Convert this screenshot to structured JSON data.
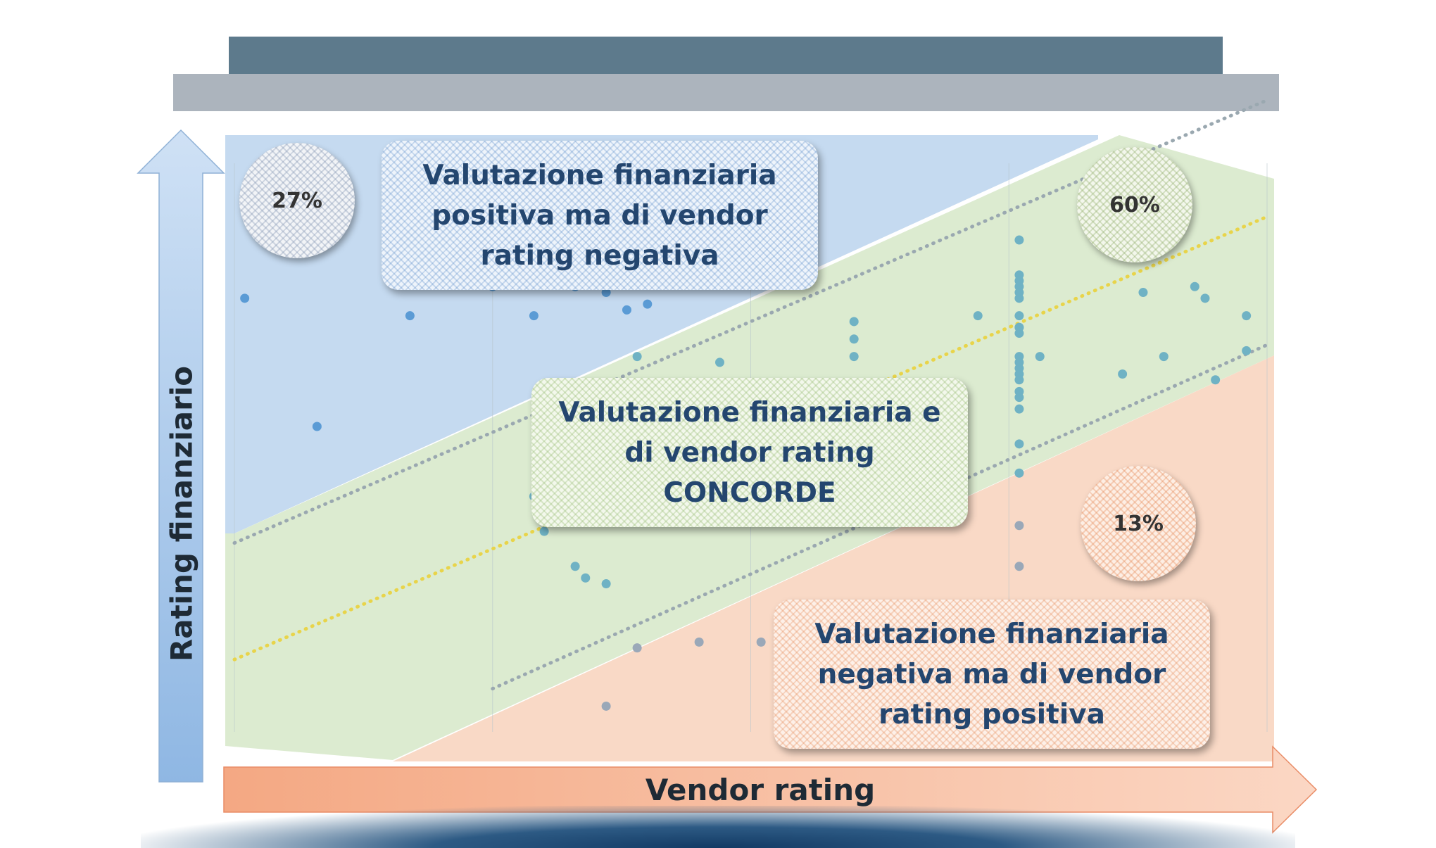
{
  "chart_data": {
    "type": "scatter",
    "title": "",
    "xlabel": "Vendor rating",
    "ylabel": "Rating finanziario",
    "xlim": [
      0,
      10
    ],
    "ylim": [
      0,
      10
    ],
    "grid": true,
    "regions": [
      {
        "id": "blue",
        "color": "#c5daf0",
        "label": "Valutazione finanziaria positiva ma di vendor rating negativa",
        "share": "27%"
      },
      {
        "id": "green",
        "color": "#dcebd0",
        "label": "Valutazione finanziaria e di vendor rating CONCORDE",
        "share": "60%"
      },
      {
        "id": "orange",
        "color": "#f9d9c6",
        "label": "Valutazione finanziaria negativa ma di vendor rating positiva",
        "share": "13%"
      }
    ],
    "series": [
      {
        "color": "#5b9bd5",
        "x": [
          0.1,
          0.8,
          1.7,
          2.5,
          2.9,
          3.3,
          3.6,
          3.8,
          4.0
        ],
        "y": [
          7.2,
          5.0,
          6.9,
          7.4,
          6.9,
          7.4,
          7.3,
          7.0,
          7.1
        ]
      },
      {
        "color": "#6fb2c4",
        "x": [
          2.9,
          3.0,
          3.0,
          3.3,
          3.4,
          3.6,
          3.9,
          4.7,
          4.8,
          6.0,
          6.0,
          6.0,
          6.0,
          6.1,
          7.2,
          7.6,
          7.8,
          8.6,
          8.8,
          9.0,
          9.3,
          9.4,
          9.5,
          9.8,
          9.8
        ],
        "y": [
          3.8,
          3.4,
          3.2,
          2.6,
          2.4,
          2.3,
          6.2,
          6.1,
          3.7,
          6.8,
          6.5,
          6.2,
          5.7,
          4.6,
          6.9,
          6.7,
          6.2,
          5.9,
          7.3,
          6.2,
          7.4,
          7.2,
          5.8,
          6.3,
          6.9
        ]
      },
      {
        "color": "#6fb2c4",
        "x": [
          7.6,
          7.6,
          7.6,
          7.6,
          7.6,
          7.6,
          7.6,
          7.6,
          7.6,
          7.6,
          7.6,
          7.6,
          7.6,
          7.6,
          7.6,
          7.6,
          7.6,
          7.6,
          7.6
        ],
        "y": [
          8.2,
          7.6,
          7.5,
          7.4,
          7.3,
          7.2,
          6.9,
          6.7,
          6.6,
          6.2,
          6.1,
          6.0,
          5.9,
          5.8,
          5.6,
          5.5,
          5.3,
          4.7,
          4.2
        ]
      },
      {
        "color": "#9aa8b8",
        "x": [
          3.9,
          4.5,
          5.1,
          7.6,
          7.6
        ],
        "y": [
          1.2,
          1.3,
          1.3,
          3.3,
          2.6
        ]
      },
      {
        "color": "#9aa8b8",
        "x": [
          3.6
        ],
        "y": [
          0.2
        ]
      }
    ],
    "trend_lines": [
      {
        "name": "upper",
        "color": "#9aa8b0",
        "x": [
          0,
          10
        ],
        "y": [
          3.0,
          10.6
        ]
      },
      {
        "name": "middle",
        "color": "#e8d44a",
        "x": [
          0,
          10
        ],
        "y": [
          1.0,
          8.6
        ]
      },
      {
        "name": "lower",
        "color": "#9aa8b0",
        "x": [
          2.5,
          10
        ],
        "y": [
          0.5,
          6.4
        ]
      }
    ]
  },
  "labels": {
    "blue": [
      "Valutazione finanziaria",
      "positiva ma di vendor",
      "rating negativa"
    ],
    "green": [
      "Valutazione finanziaria e",
      "di vendor rating",
      "CONCORDE"
    ],
    "orange": [
      "Valutazione finanziaria",
      "negativa ma di vendor",
      "rating positiva"
    ]
  },
  "percentages": {
    "blue": "27%",
    "green": "60%",
    "orange": "13%"
  },
  "axes": {
    "x_label": "Vendor rating",
    "y_label": "Rating finanziario"
  },
  "colors": {
    "x_axis_arrow": "#f0997a",
    "y_axis_arrow": "#9cc2e8"
  }
}
